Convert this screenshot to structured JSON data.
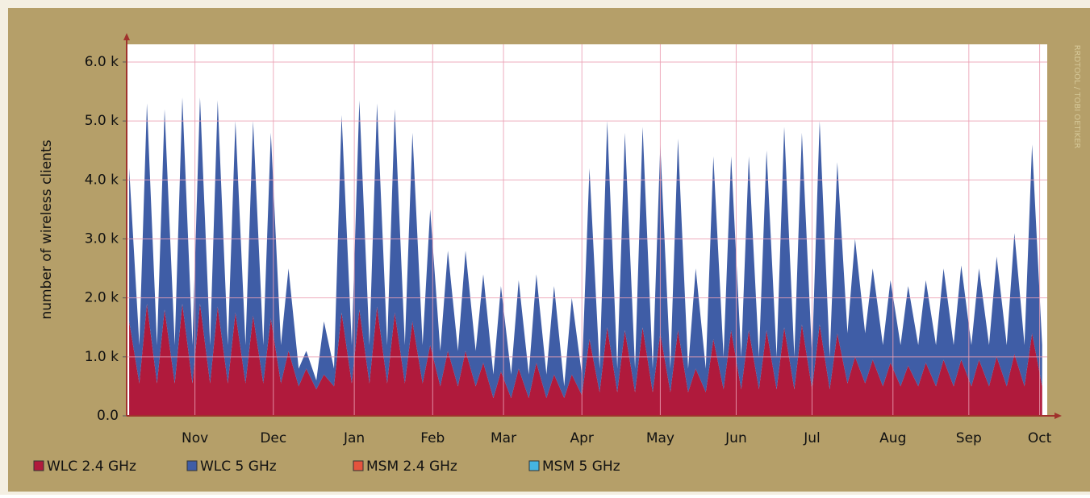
{
  "chart_data": {
    "type": "stacked-area",
    "y_label": "number of wireless clients",
    "watermark": "RRDTOOL / TOBI OETIKER",
    "xlim": [
      0,
      364
    ],
    "xticks": [
      {
        "value": 27,
        "label": "Nov"
      },
      {
        "value": 58,
        "label": "Dec"
      },
      {
        "value": 90,
        "label": "Jan"
      },
      {
        "value": 121,
        "label": "Feb"
      },
      {
        "value": 149,
        "label": "Mar"
      },
      {
        "value": 180,
        "label": "Apr"
      },
      {
        "value": 211,
        "label": "May"
      },
      {
        "value": 241,
        "label": "Jun"
      },
      {
        "value": 271,
        "label": "Jul"
      },
      {
        "value": 303,
        "label": "Aug"
      },
      {
        "value": 333,
        "label": "Sep"
      },
      {
        "value": 361,
        "label": "Oct"
      }
    ],
    "ylim": [
      0,
      6300
    ],
    "yticks": [
      {
        "value": 0,
        "label": "0.0"
      },
      {
        "value": 1000,
        "label": "1.0 k"
      },
      {
        "value": 2000,
        "label": "2.0 k"
      },
      {
        "value": 3000,
        "label": "3.0 k"
      },
      {
        "value": 4000,
        "label": "4.0 k"
      },
      {
        "value": 5000,
        "label": "5.0 k"
      },
      {
        "value": 6000,
        "label": "6.0 k"
      }
    ],
    "grid": true,
    "x": [
      1,
      5,
      8,
      12,
      15,
      19,
      22,
      26,
      29,
      33,
      36,
      40,
      43,
      47,
      50,
      54,
      57,
      61,
      64,
      68,
      71,
      75,
      78,
      82,
      85,
      89,
      92,
      96,
      99,
      103,
      106,
      110,
      113,
      117,
      120,
      124,
      127,
      131,
      134,
      138,
      141,
      145,
      148,
      152,
      155,
      159,
      162,
      166,
      169,
      173,
      176,
      180,
      183,
      187,
      190,
      194,
      197,
      201,
      204,
      208,
      211,
      215,
      218,
      222,
      225,
      229,
      232,
      236,
      239,
      243,
      246,
      250,
      253,
      257,
      260,
      264,
      267,
      271,
      274,
      278,
      281,
      285,
      288,
      292,
      295,
      299,
      302,
      306,
      309,
      313,
      316,
      320,
      323,
      327,
      330,
      334,
      337,
      341,
      344,
      348,
      351,
      355,
      358,
      362
    ],
    "series": [
      {
        "name": "WLC 2.4 GHz",
        "color": "#b01a3c",
        "values": [
          1600,
          550,
          1900,
          550,
          1800,
          550,
          1900,
          550,
          1900,
          550,
          1850,
          550,
          1750,
          550,
          1700,
          550,
          1650,
          550,
          1100,
          500,
          800,
          450,
          700,
          500,
          1750,
          550,
          1800,
          550,
          1850,
          550,
          1750,
          550,
          1600,
          550,
          1200,
          500,
          1100,
          500,
          1100,
          500,
          900,
          300,
          750,
          300,
          800,
          300,
          900,
          300,
          700,
          300,
          700,
          350,
          1300,
          400,
          1500,
          400,
          1450,
          400,
          1500,
          400,
          1400,
          400,
          1450,
          400,
          800,
          400,
          1300,
          450,
          1450,
          450,
          1450,
          450,
          1450,
          450,
          1500,
          450,
          1550,
          450,
          1550,
          450,
          1400,
          550,
          1000,
          550,
          950,
          500,
          900,
          500,
          850,
          500,
          900,
          500,
          950,
          500,
          950,
          500,
          950,
          500,
          1000,
          500,
          1050,
          500,
          1400,
          500
        ]
      },
      {
        "name": "WLC 5 GHz",
        "color": "#3f5da6",
        "values": [
          2600,
          650,
          3400,
          650,
          3400,
          650,
          3500,
          650,
          3500,
          650,
          3500,
          650,
          3250,
          650,
          3300,
          650,
          3150,
          650,
          1400,
          300,
          300,
          150,
          900,
          300,
          3350,
          650,
          3550,
          650,
          3450,
          650,
          3450,
          650,
          3200,
          650,
          2300,
          600,
          1700,
          600,
          1700,
          600,
          1500,
          400,
          1450,
          400,
          1500,
          400,
          1500,
          400,
          1500,
          200,
          1300,
          350,
          2900,
          400,
          3500,
          400,
          3350,
          400,
          3400,
          400,
          3200,
          400,
          3250,
          400,
          1700,
          400,
          3100,
          550,
          2950,
          550,
          2950,
          550,
          3050,
          550,
          3400,
          550,
          3250,
          550,
          3450,
          550,
          2900,
          850,
          2000,
          850,
          1550,
          700,
          1400,
          700,
          1350,
          700,
          1400,
          700,
          1550,
          700,
          1600,
          700,
          1550,
          700,
          1700,
          700,
          2050,
          700,
          3200,
          700
        ]
      },
      {
        "name": "MSM 2.4 GHz",
        "color": "#e5533d",
        "values": [
          0,
          0,
          0,
          0,
          0,
          0,
          0,
          0,
          0,
          0,
          0,
          0,
          0,
          0,
          0,
          0,
          0,
          0,
          0,
          0,
          0,
          0,
          0,
          0,
          0,
          0,
          0,
          0,
          0,
          0,
          0,
          0,
          0,
          0,
          0,
          0,
          0,
          0,
          0,
          0,
          0,
          0,
          0,
          0,
          0,
          0,
          0,
          0,
          0,
          0,
          0,
          0,
          0,
          0,
          0,
          0,
          0,
          0,
          0,
          0,
          0,
          0,
          0,
          0,
          0,
          0,
          0,
          0,
          0,
          0,
          0,
          0,
          0,
          0,
          0,
          0,
          0,
          0,
          0,
          0,
          0,
          0,
          0,
          0,
          0,
          0,
          0,
          0,
          0,
          0,
          0,
          0,
          0,
          0,
          0,
          0,
          0,
          0,
          0,
          0,
          0,
          0,
          0,
          0
        ]
      },
      {
        "name": "MSM 5 GHz",
        "color": "#45b4e2",
        "values": [
          0,
          0,
          0,
          0,
          0,
          0,
          0,
          0,
          0,
          0,
          0,
          0,
          0,
          0,
          0,
          0,
          0,
          0,
          0,
          0,
          0,
          0,
          0,
          0,
          0,
          0,
          0,
          0,
          0,
          0,
          0,
          0,
          0,
          0,
          0,
          0,
          0,
          0,
          0,
          0,
          0,
          0,
          0,
          0,
          0,
          0,
          0,
          0,
          0,
          0,
          0,
          0,
          0,
          0,
          0,
          0,
          0,
          0,
          0,
          0,
          0,
          0,
          0,
          0,
          0,
          0,
          0,
          0,
          0,
          0,
          0,
          0,
          0,
          0,
          0,
          0,
          0,
          0,
          0,
          0,
          0,
          0,
          0,
          0,
          0,
          0,
          0,
          0,
          0,
          0,
          0,
          0,
          0,
          0,
          0,
          0,
          0,
          0,
          0,
          0,
          0,
          0,
          0,
          0
        ]
      }
    ]
  }
}
